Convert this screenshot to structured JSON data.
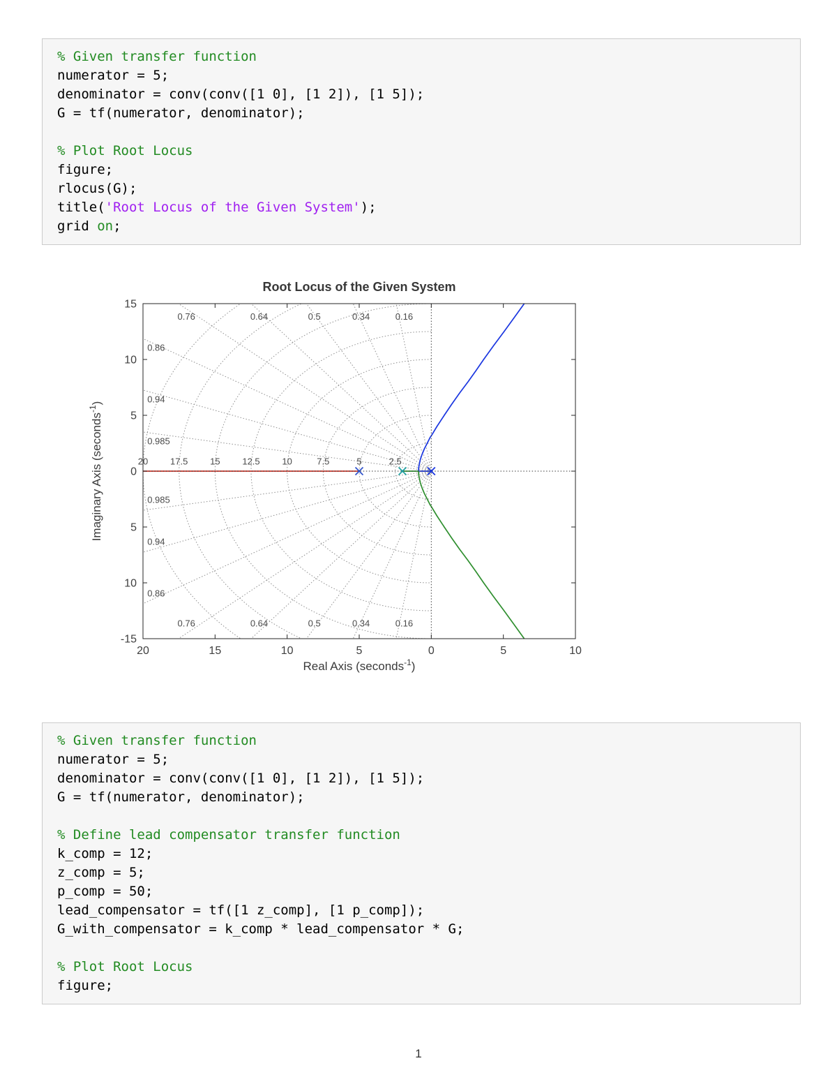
{
  "page": {
    "number": "1"
  },
  "code_block_1": {
    "lines": [
      [
        {
          "t": "% Given transfer function",
          "c": "comment"
        }
      ],
      [
        {
          "t": "numerator = 5;",
          "c": "plain"
        }
      ],
      [
        {
          "t": "denominator = conv(conv([1 0], [1 2]), [1 5]);",
          "c": "plain"
        }
      ],
      [
        {
          "t": "G = tf(numerator, denominator);",
          "c": "plain"
        }
      ],
      [],
      [
        {
          "t": "% Plot Root Locus",
          "c": "comment"
        }
      ],
      [
        {
          "t": "figure;",
          "c": "plain"
        }
      ],
      [
        {
          "t": "rlocus(G);",
          "c": "plain"
        }
      ],
      [
        {
          "t": "title(",
          "c": "plain"
        },
        {
          "t": "'Root Locus of the Given System'",
          "c": "string"
        },
        {
          "t": ");",
          "c": "plain"
        }
      ],
      [
        {
          "t": "grid ",
          "c": "plain"
        },
        {
          "t": "on",
          "c": "onoff"
        },
        {
          "t": ";",
          "c": "plain"
        }
      ]
    ]
  },
  "code_block_2": {
    "lines": [
      [
        {
          "t": "% Given transfer function",
          "c": "comment"
        }
      ],
      [
        {
          "t": "numerator = 5;",
          "c": "plain"
        }
      ],
      [
        {
          "t": "denominator = conv(conv([1 0], [1 2]), [1 5]);",
          "c": "plain"
        }
      ],
      [
        {
          "t": "G = tf(numerator, denominator);",
          "c": "plain"
        }
      ],
      [],
      [
        {
          "t": "% Define lead compensator transfer function",
          "c": "comment"
        }
      ],
      [
        {
          "t": "k_comp = 12;",
          "c": "plain"
        }
      ],
      [
        {
          "t": "z_comp = 5;",
          "c": "plain"
        }
      ],
      [
        {
          "t": "p_comp = 50;",
          "c": "plain"
        }
      ],
      [
        {
          "t": "lead_compensator = tf([1 z_comp], [1 p_comp]);",
          "c": "plain"
        }
      ],
      [
        {
          "t": "G_with_compensator = k_comp * lead_compensator * G;",
          "c": "plain"
        }
      ],
      [],
      [
        {
          "t": "% Plot Root Locus",
          "c": "comment"
        }
      ],
      [
        {
          "t": "figure;",
          "c": "plain"
        }
      ]
    ]
  },
  "chart_data": {
    "type": "line",
    "title": "Root Locus of the Given System",
    "xlabel": {
      "main": "Real Axis  (seconds",
      "sup": "-1",
      "end": ")"
    },
    "ylabel": {
      "main": "Imaginary Axis  (seconds",
      "sup": "-1",
      "end": ")"
    },
    "xlim": [
      -20,
      10
    ],
    "ylim": [
      -15,
      15
    ],
    "grid": true,
    "xticks": {
      "values": [
        -20,
        -15,
        -10,
        -5,
        0,
        5,
        10
      ],
      "labels": [
        "20",
        "15",
        "10",
        "5",
        "0",
        "5",
        "10"
      ]
    },
    "yticks": {
      "values": [
        15,
        10,
        5,
        0,
        -5,
        -10,
        -15
      ],
      "labels": [
        "15",
        "10",
        "5",
        "0",
        "5",
        "10",
        "-15"
      ]
    },
    "sgrid": {
      "zeta": [
        {
          "v": 0.16,
          "label": "0.16"
        },
        {
          "v": 0.34,
          "label": "0.34"
        },
        {
          "v": 0.5,
          "label": "0.5"
        },
        {
          "v": 0.64,
          "label": "0.64"
        },
        {
          "v": 0.76,
          "label": "0.76"
        },
        {
          "v": 0.86,
          "label": "0.86"
        },
        {
          "v": 0.94,
          "label": "0.94"
        },
        {
          "v": 0.985,
          "label": "0.985"
        }
      ],
      "wn": [
        {
          "r": 2.5,
          "label": "2.5"
        },
        {
          "r": 5,
          "label": "5"
        },
        {
          "r": 7.5,
          "label": "7.5"
        },
        {
          "r": 10,
          "label": "10"
        },
        {
          "r": 12.5,
          "label": "12.5"
        },
        {
          "r": 15,
          "label": "15"
        },
        {
          "r": 17.5,
          "label": "17.5"
        },
        {
          "r": 20,
          "label": "20"
        }
      ]
    },
    "series": [
      {
        "name": "real-axis",
        "color": "#c8372d",
        "points": [
          [
            -20,
            0
          ],
          [
            -5,
            0
          ]
        ]
      },
      {
        "name": "upper",
        "color": "#1a36e0",
        "points": [
          [
            0,
            0
          ],
          [
            -0.45,
            0
          ],
          [
            -0.88,
            0
          ],
          [
            -0.88,
            0.25
          ],
          [
            -0.85,
            0.5
          ],
          [
            -0.77,
            1
          ],
          [
            -0.64,
            1.5
          ],
          [
            -0.48,
            2
          ],
          [
            -0.28,
            2.5
          ],
          [
            -0.09,
            3
          ],
          [
            0,
            3.16
          ],
          [
            0.39,
            4
          ],
          [
            0.9,
            5
          ],
          [
            1.42,
            6
          ],
          [
            1.97,
            7
          ],
          [
            2.55,
            8
          ],
          [
            3.1,
            9
          ],
          [
            3.63,
            10
          ],
          [
            4.33,
            11.25
          ],
          [
            5.05,
            12.5
          ],
          [
            5.75,
            13.75
          ],
          [
            6.45,
            15
          ]
        ]
      },
      {
        "name": "lower",
        "color": "#2f8f2f",
        "points": [
          [
            -2,
            0
          ],
          [
            -1.5,
            0
          ],
          [
            -0.88,
            0
          ],
          [
            -0.88,
            -0.25
          ],
          [
            -0.85,
            -0.5
          ],
          [
            -0.77,
            -1
          ],
          [
            -0.64,
            -1.5
          ],
          [
            -0.48,
            -2
          ],
          [
            -0.28,
            -2.5
          ],
          [
            -0.09,
            -3
          ],
          [
            0,
            -3.16
          ],
          [
            0.39,
            -4
          ],
          [
            0.9,
            -5
          ],
          [
            1.42,
            -6
          ],
          [
            1.97,
            -7
          ],
          [
            2.55,
            -8
          ],
          [
            3.1,
            -9
          ],
          [
            3.63,
            -10
          ],
          [
            4.33,
            -11.25
          ],
          [
            5.05,
            -12.5
          ],
          [
            5.75,
            -13.75
          ],
          [
            6.45,
            -15
          ]
        ]
      }
    ],
    "poles": [
      {
        "x": 0,
        "y": 0,
        "color": "#1a36e0"
      },
      {
        "x": -2,
        "y": 0,
        "color": "#1fa0a0"
      },
      {
        "x": -5,
        "y": 0,
        "color": "#3355cc"
      }
    ],
    "colors": {
      "axes": "#262626",
      "grid_dotted": "#8f8f8f",
      "axis_dotted": "#3a3a3a"
    }
  }
}
